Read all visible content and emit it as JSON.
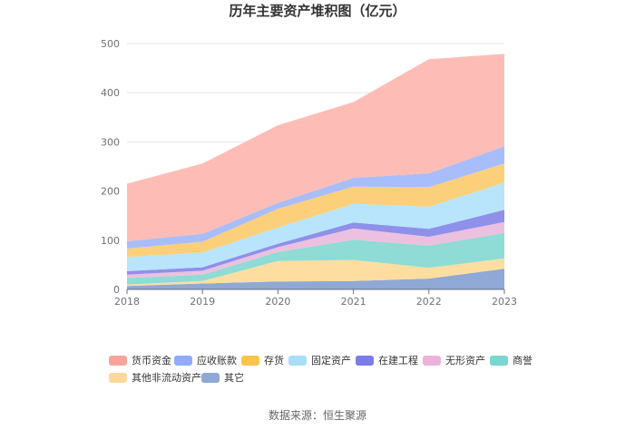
{
  "chart_data": {
    "type": "area",
    "stacked": true,
    "title": "历年主要资产堆积图（亿元）",
    "xlabel": "",
    "ylabel": "",
    "categories": [
      "2018",
      "2019",
      "2020",
      "2021",
      "2022",
      "2023"
    ],
    "ylim": [
      0,
      500
    ],
    "yticks": [
      0,
      100,
      200,
      300,
      400,
      500
    ],
    "grid": true,
    "legend_position": "bottom",
    "series": [
      {
        "name": "其它",
        "color": "#8fa8d5",
        "values": [
          7,
          12,
          16,
          17,
          22,
          42
        ]
      },
      {
        "name": "其他非流动资产",
        "color": "#fddea0",
        "values": [
          3,
          5,
          42,
          43,
          22,
          21
        ]
      },
      {
        "name": "商誉",
        "color": "#8fdbd5",
        "values": [
          13,
          13,
          18,
          41,
          45,
          52
        ]
      },
      {
        "name": "无形资产",
        "color": "#ecc0df",
        "values": [
          7,
          8,
          10,
          23,
          18,
          22
        ]
      },
      {
        "name": "在建工程",
        "color": "#8f90ea",
        "values": [
          7,
          7,
          7,
          12,
          16,
          25
        ]
      },
      {
        "name": "固定资产",
        "color": "#b8e5fc",
        "values": [
          29,
          30,
          33,
          38,
          45,
          55
        ]
      },
      {
        "name": "存货",
        "color": "#fcd07a",
        "values": [
          17,
          22,
          38,
          35,
          40,
          39
        ]
      },
      {
        "name": "应收账款",
        "color": "#a8bdfc",
        "values": [
          15,
          16,
          12,
          18,
          28,
          35
        ]
      },
      {
        "name": "货币资金",
        "color": "#fdbdb6",
        "values": [
          117,
          143,
          158,
          154,
          232,
          188
        ]
      }
    ],
    "legend_order": [
      "货币资金",
      "应收账款",
      "存货",
      "固定资产",
      "在建工程",
      "无形资产",
      "商誉",
      "其他非流动资产",
      "其它"
    ],
    "legend_colors": {
      "货币资金": "#f8a49a",
      "应收账款": "#93abf8",
      "存货": "#fbc54a",
      "固定资产": "#a9def9",
      "在建工程": "#7b7bea",
      "无形资产": "#e9b3da",
      "商誉": "#79d6d0",
      "其他非流动资产": "#fcd89d",
      "其它": "#8fa8d5"
    },
    "source": "数据来源：恒生聚源"
  }
}
